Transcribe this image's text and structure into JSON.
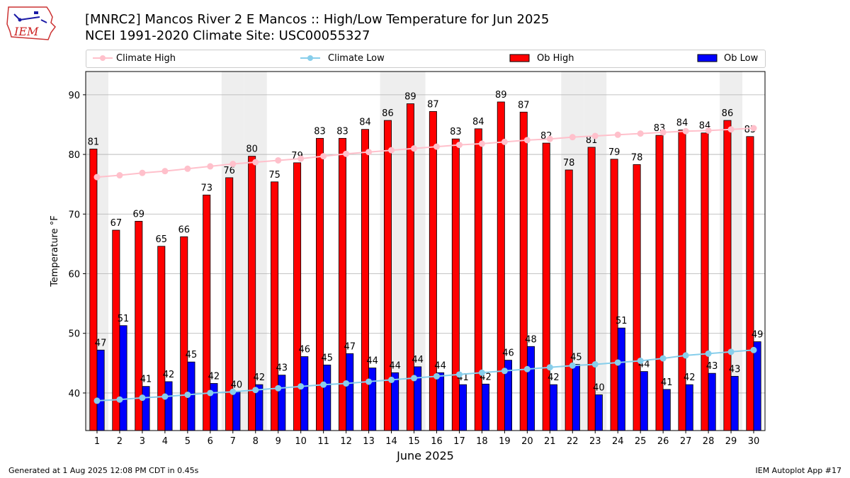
{
  "header": {
    "title_line1": "[MNRC2] Mancos River 2 E Mancos :: High/Low Temperature for Jun 2025",
    "title_line2": "NCEI 1991-2020 Climate Site: USC00055327",
    "logo_text": "IEM"
  },
  "legend": {
    "climate_high": "Climate High",
    "climate_low": "Climate Low",
    "ob_high": "Ob High",
    "ob_low": "Ob Low"
  },
  "footer": {
    "generated": "Generated at 1 Aug 2025 12:08 PM CDT in 0.45s",
    "app": "IEM Autoplot App #17"
  },
  "colors": {
    "ob_high": "#ff0000",
    "ob_low": "#0000ff",
    "climate_high": "#ffc0cb",
    "climate_low": "#87ceeb",
    "weekend_band": "#eeeeee",
    "grid": "#b0b0b0"
  },
  "chart_data": {
    "type": "bar",
    "xlabel": "June 2025",
    "ylabel": "Temperature °F",
    "ylim": [
      33.7,
      93.9
    ],
    "yticks": [
      40,
      50,
      60,
      70,
      80,
      90
    ],
    "grid": "horizontal",
    "legend_position": "top",
    "categories": [
      "1",
      "2",
      "3",
      "4",
      "5",
      "6",
      "7",
      "8",
      "9",
      "10",
      "11",
      "12",
      "13",
      "14",
      "15",
      "16",
      "17",
      "18",
      "19",
      "20",
      "21",
      "22",
      "23",
      "24",
      "25",
      "26",
      "27",
      "28",
      "29",
      "30"
    ],
    "shaded_days": [
      1,
      7,
      8,
      14,
      15,
      22,
      23,
      29
    ],
    "series": [
      {
        "name": "Ob High",
        "kind": "bar",
        "values": [
          81,
          67,
          69,
          65,
          66,
          73,
          76,
          80,
          75,
          79,
          83,
          83,
          84,
          86,
          89,
          87,
          83,
          84,
          89,
          87,
          82,
          78,
          81,
          79,
          78,
          83,
          84,
          84,
          86,
          83
        ],
        "plotted": [
          80.9,
          67.3,
          68.8,
          64.6,
          66.2,
          73.2,
          76.1,
          79.7,
          75.4,
          78.6,
          82.7,
          82.7,
          84.2,
          85.7,
          88.5,
          87.2,
          82.6,
          84.3,
          88.8,
          87.1,
          81.9,
          77.4,
          81.2,
          79.2,
          78.3,
          83.2,
          84.1,
          83.6,
          85.7,
          83.0
        ],
        "labels": [
          "81",
          "67",
          "69",
          "65",
          "66",
          "73",
          "76",
          "80",
          "75",
          "79",
          "83",
          "83",
          "84",
          "86",
          "89",
          "87",
          "83",
          "84",
          "89",
          "87",
          "82",
          "78",
          "81",
          "79",
          "78",
          "83",
          "84",
          "84",
          "86",
          "83"
        ]
      },
      {
        "name": "Ob Low",
        "kind": "bar",
        "values": [
          47,
          51,
          41,
          42,
          45,
          42,
          40,
          42,
          43,
          46,
          45,
          47,
          44,
          44,
          44,
          44,
          41,
          42,
          46,
          48,
          42,
          45,
          40,
          51,
          44,
          41,
          42,
          43,
          43,
          49
        ],
        "plotted": [
          47.2,
          51.3,
          41.1,
          41.9,
          45.2,
          41.6,
          40.2,
          41.4,
          43.0,
          46.1,
          44.7,
          46.6,
          44.2,
          43.4,
          44.4,
          43.4,
          41.4,
          41.5,
          45.5,
          47.8,
          41.4,
          44.8,
          39.7,
          50.9,
          43.6,
          40.6,
          41.4,
          43.3,
          42.8,
          48.6
        ],
        "labels": [
          "47",
          "51",
          "41",
          "42",
          "45",
          "42",
          "40",
          "42",
          "43",
          "46",
          "45",
          "47",
          "44",
          "44",
          "44",
          "44",
          "41",
          "42",
          "46",
          "48",
          "42",
          "45",
          "40",
          "51",
          "44",
          "41",
          "42",
          "43",
          "43",
          "49"
        ]
      },
      {
        "name": "Climate High",
        "kind": "line",
        "values": [
          76.2,
          76.5,
          76.9,
          77.2,
          77.6,
          78.0,
          78.4,
          78.7,
          79.0,
          79.3,
          79.7,
          80.1,
          80.4,
          80.7,
          81.0,
          81.3,
          81.6,
          81.8,
          82.1,
          82.4,
          82.6,
          82.9,
          83.1,
          83.3,
          83.5,
          83.7,
          83.9,
          84.0,
          84.2,
          84.4
        ]
      },
      {
        "name": "Climate Low",
        "kind": "line",
        "values": [
          38.7,
          38.9,
          39.2,
          39.4,
          39.7,
          40.0,
          40.2,
          40.5,
          40.8,
          41.1,
          41.4,
          41.6,
          41.9,
          42.2,
          42.5,
          42.8,
          43.1,
          43.4,
          43.7,
          44.0,
          44.3,
          44.6,
          44.8,
          45.1,
          45.4,
          45.8,
          46.3,
          46.6,
          46.9,
          47.2
        ]
      }
    ]
  }
}
